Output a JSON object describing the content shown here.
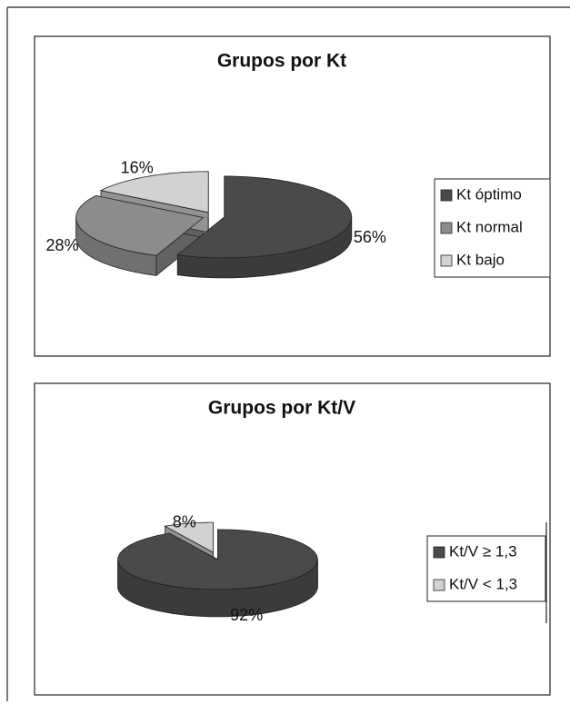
{
  "chart_data": [
    {
      "type": "pie",
      "title": "Grupos por Kt",
      "categories": [
        "Kt óptimo",
        "Kt normal",
        "Kt bajo"
      ],
      "values": [
        56,
        28,
        16
      ],
      "value_labels": [
        "56%",
        "28%",
        "16%"
      ],
      "colors": [
        "#4a4a4a",
        "#8c8c8c",
        "#d2d2d2"
      ],
      "legend": "right"
    },
    {
      "type": "pie",
      "title": "Grupos por Kt/V",
      "categories": [
        "Kt/V ≥ 1,3",
        "Kt/V < 1,3"
      ],
      "values": [
        92,
        8
      ],
      "value_labels": [
        "92%",
        "8%"
      ],
      "colors": [
        "#4a4a4a",
        "#d2d2d2"
      ],
      "legend": "right"
    }
  ]
}
